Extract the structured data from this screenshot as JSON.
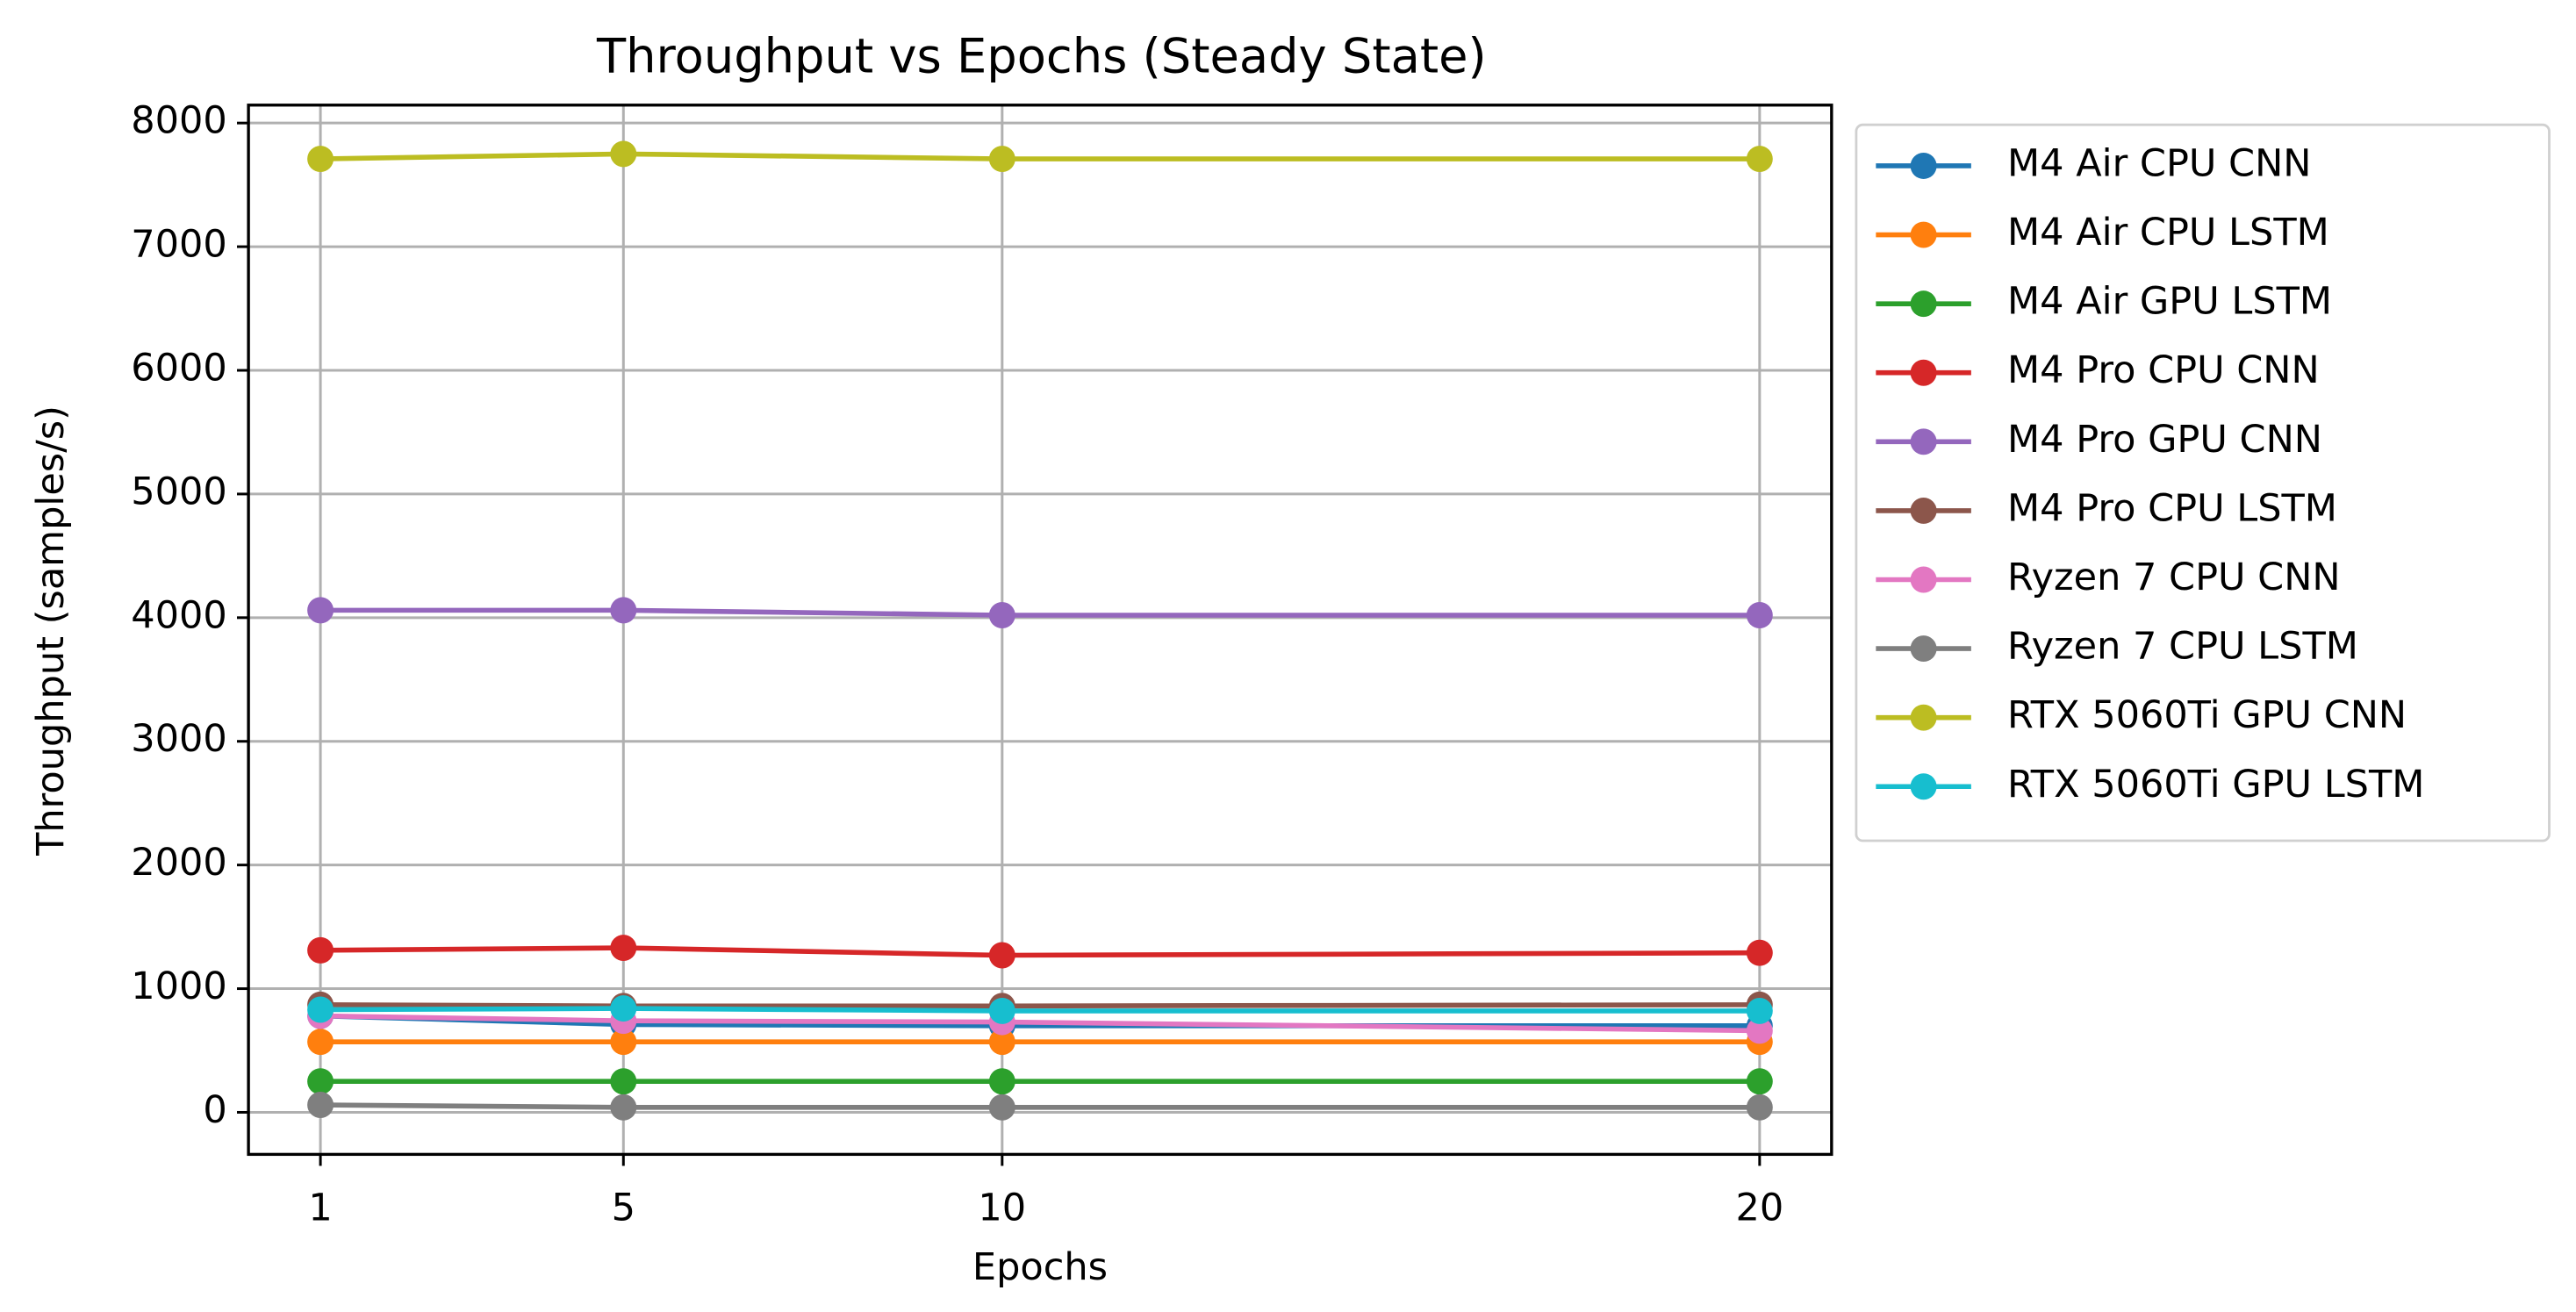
{
  "chart_data": {
    "type": "line",
    "title": "Throughput vs Epochs (Steady State)",
    "x_label": "Epochs",
    "y_label": "Throughput (samples/s)",
    "x": [
      1,
      5,
      10,
      20
    ],
    "xlim": [
      0.05,
      20.95
    ],
    "xticks": [
      1,
      5,
      10,
      20
    ],
    "ylim": [
      -340,
      8145
    ],
    "yticks": [
      0,
      1000,
      2000,
      3000,
      4000,
      5000,
      6000,
      7000,
      8000
    ],
    "grid": true,
    "series": [
      {
        "name": "M4 Air CPU CNN",
        "color": "#1f77b4",
        "values": [
          780,
          710,
          700,
          700
        ]
      },
      {
        "name": "M4 Air CPU LSTM",
        "color": "#ff7f0e",
        "values": [
          570,
          570,
          570,
          570
        ]
      },
      {
        "name": "M4 Air GPU LSTM",
        "color": "#2ca02c",
        "values": [
          250,
          250,
          250,
          250
        ]
      },
      {
        "name": "M4 Pro CPU CNN",
        "color": "#d62728",
        "values": [
          1310,
          1330,
          1270,
          1290
        ]
      },
      {
        "name": "M4 Pro GPU CNN",
        "color": "#9467bd",
        "values": [
          4060,
          4060,
          4020,
          4020
        ]
      },
      {
        "name": "M4 Pro CPU LSTM",
        "color": "#8c564b",
        "values": [
          870,
          860,
          860,
          870
        ]
      },
      {
        "name": "Ryzen 7 CPU CNN",
        "color": "#e377c2",
        "values": [
          780,
          740,
          730,
          660
        ]
      },
      {
        "name": "Ryzen 7 CPU LSTM",
        "color": "#7f7f7f",
        "values": [
          60,
          40,
          40,
          40
        ]
      },
      {
        "name": "RTX 5060Ti GPU CNN",
        "color": "#bcbd22",
        "values": [
          7710,
          7750,
          7710,
          7710
        ]
      },
      {
        "name": "RTX 5060Ti GPU LSTM",
        "color": "#17becf",
        "values": [
          830,
          840,
          820,
          820
        ]
      }
    ]
  }
}
